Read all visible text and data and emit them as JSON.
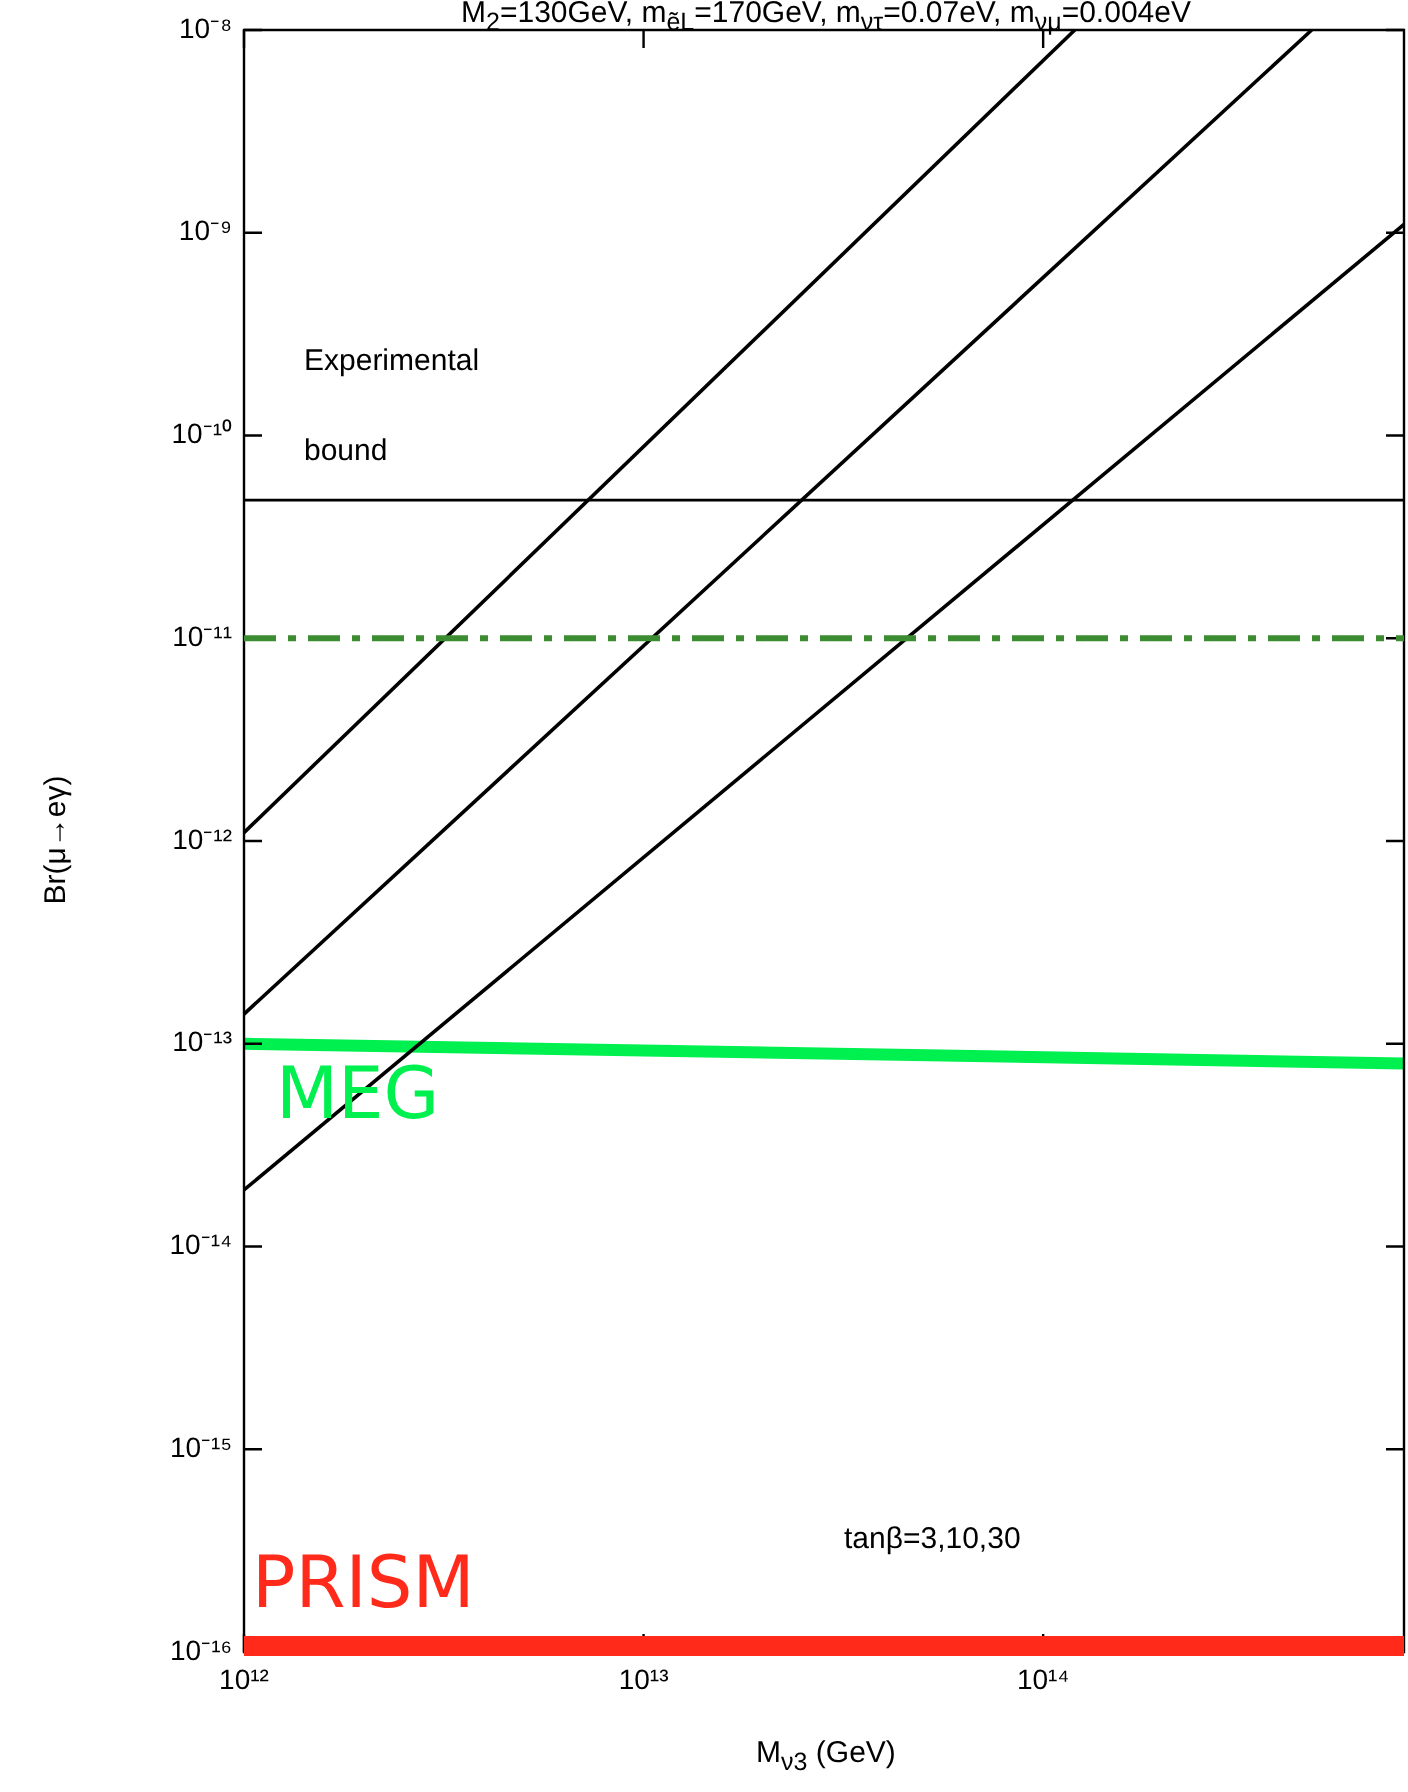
{
  "chart_data": {
    "type": "line",
    "title": "M$_{2}$=130GeV, m$_{ẽL}$=170GeV, m$_{ντ}$=0.07eV, m$_{νμ}$=0.004eV",
    "xlabel": "M$_{ν3}$ (GeV)",
    "ylabel": "Br(μ→eγ)",
    "log": "xy",
    "xlim": [
      1000000000000.0,
      800000000000000.0
    ],
    "ylim": [
      1e-16,
      1e-08
    ],
    "xticks": [
      {
        "value": 1000000000000.0,
        "label": "10¹²"
      },
      {
        "value": 10000000000000.0,
        "label": "10¹³"
      },
      {
        "value": 100000000000000.0,
        "label": "10¹⁴"
      }
    ],
    "yticks": [
      {
        "value": 1e-16,
        "label": "10⁻¹⁶"
      },
      {
        "value": 1e-15,
        "label": "10⁻¹⁵"
      },
      {
        "value": 1e-14,
        "label": "10⁻¹⁴"
      },
      {
        "value": 1e-13,
        "label": "10⁻¹³"
      },
      {
        "value": 1e-12,
        "label": "10⁻¹²"
      },
      {
        "value": 1e-11,
        "label": "10⁻¹¹"
      },
      {
        "value": 1e-10,
        "label": "10⁻¹⁰"
      },
      {
        "value": 1e-09,
        "label": "10⁻⁹"
      },
      {
        "value": 1e-08,
        "label": "10⁻⁸"
      }
    ],
    "grid": false,
    "legend": false,
    "marker": "none",
    "line_style": "solid",
    "series": [
      {
        "color": "#000000",
        "x": [
          1000000000000.0,
          120000000000000.0
        ],
        "values": [
          1.1e-12,
          1e-08
        ]
      },
      {
        "color": "#000000",
        "x": [
          1000000000000.0,
          470000000000000.0
        ],
        "values": [
          1.4e-13,
          1e-08
        ]
      },
      {
        "color": "#000000",
        "x": [
          1000000000000.0,
          800000000000000.0
        ],
        "values": [
          1.9e-14,
          1.1e-09
        ]
      },
      {
        "name": "MEG",
        "color": "#00f050",
        "x": [
          1000000000000.0,
          800000000000000.0
        ],
        "values": [
          1e-13,
          8e-14
        ]
      }
    ],
    "ref_lines": [
      {
        "axis": "y",
        "value": 4.8e-11,
        "label": "Experimental bound",
        "color": "#000000",
        "line_style": "solid"
      },
      {
        "axis": "y",
        "value": 1e-11,
        "color": "#3c8c32",
        "line_style": "dashed"
      },
      {
        "axis": "y",
        "value": 1e-16,
        "label": "PRISM",
        "color": "#ff2a1a",
        "line_style": "solid"
      }
    ],
    "annotations": [
      "tanβ=3,10,30"
    ]
  }
}
